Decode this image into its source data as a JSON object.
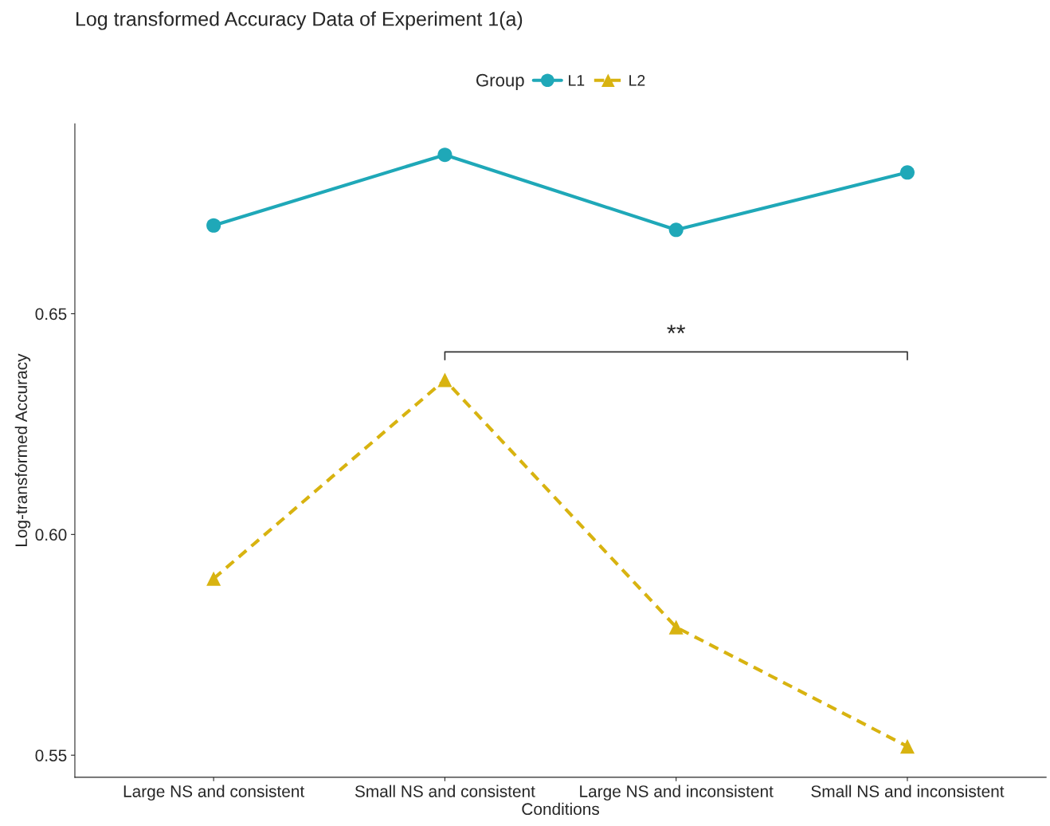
{
  "chart_data": {
    "type": "line",
    "title": "Log transformed Accuracy Data of Experiment 1(a)",
    "xlabel": "Conditions",
    "ylabel": "Log-transformed Accuracy",
    "legend_title": "Group",
    "categories": [
      "Large NS and consistent",
      "Small NS and consistent",
      "Large NS and inconsistent",
      "Small NS and inconsistent"
    ],
    "series": [
      {
        "name": "L1",
        "color": "#1fa8b8",
        "values": [
          0.67,
          0.686,
          0.669,
          0.682
        ],
        "marker": "circle",
        "line_style": "solid"
      },
      {
        "name": "L2",
        "color": "#d8b310",
        "values": [
          0.59,
          0.635,
          0.579,
          0.552
        ],
        "marker": "triangle",
        "line_style": "dashed"
      }
    ],
    "ylim": [
      0.545,
      0.693
    ],
    "yticks": [
      {
        "value": 0.55,
        "label": "0.55"
      },
      {
        "value": 0.6,
        "label": "0.60"
      },
      {
        "value": 0.65,
        "label": "0.65"
      }
    ],
    "annotations": [
      "**"
    ],
    "grid": false,
    "legend": "top"
  }
}
